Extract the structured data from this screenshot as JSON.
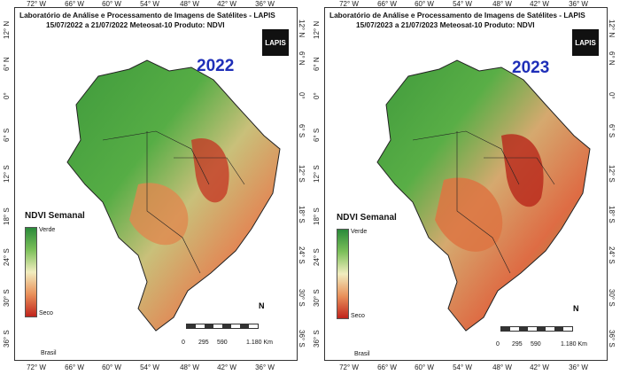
{
  "panels": [
    {
      "title_line1": "Laboratório de Análise e Processamento de Imagens de Satélites - LAPIS",
      "title_line2": "15/07/2022  a  21/07/2022        Meteosat-10     Produto: NDVI",
      "year": "2022",
      "logo": "LAPIS",
      "legend_title": "NDVI Semanal",
      "legend_high": "Verde",
      "legend_low": "Seco",
      "north": "N",
      "scale_labels": [
        "0",
        "295",
        "590",
        "1.180 Km"
      ],
      "inset_label": "Brasil"
    },
    {
      "title_line1": "Laboratório de Análise e Processamento de Imagens de Satélites - LAPIS",
      "title_line2": "15/07/2023  a  21/07/2023        Meteosat-10     Produto: NDVI",
      "year": "2023",
      "logo": "LAPIS",
      "legend_title": "NDVI Semanal",
      "legend_high": "Verde",
      "legend_low": "Seco",
      "north": "N",
      "scale_labels": [
        "0",
        "295",
        "590",
        "1.180 Km"
      ],
      "inset_label": "Brasil"
    }
  ],
  "axes": {
    "longitude_ticks": [
      "72° W",
      "66° W",
      "60° W",
      "54° W",
      "48° W",
      "42° W",
      "36° W"
    ],
    "latitude_ticks": [
      "6° N",
      "12° N",
      "0°",
      "6° S",
      "12° S",
      "18° S",
      "24° S",
      "30° S",
      "36° S"
    ]
  }
}
